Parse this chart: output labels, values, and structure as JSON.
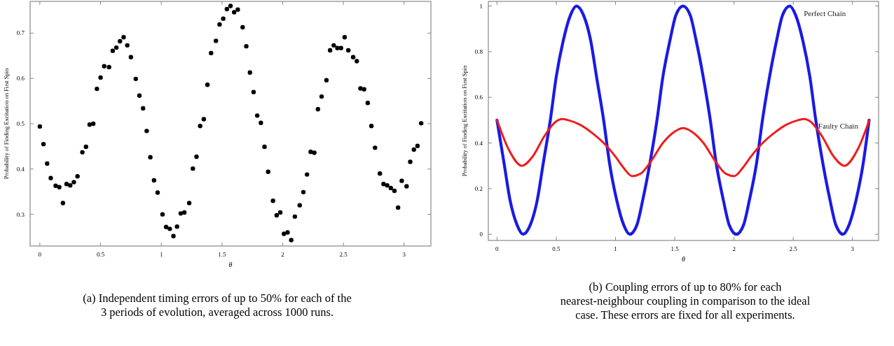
{
  "chart_data": [
    {
      "type": "scatter",
      "xlabel": "θ",
      "ylabel": "Probability of Finding Excitation on First Spin",
      "marker": "circle",
      "grid": false,
      "legend": false,
      "xlim": [
        -0.08,
        3.22
      ],
      "ylim": [
        0.23,
        0.77
      ],
      "xticks": [
        0,
        0.5,
        1,
        1.5,
        2,
        2.5,
        3
      ],
      "yticks": [
        0.3,
        0.4,
        0.5,
        0.6,
        0.7
      ],
      "x": [
        0,
        0.03,
        0.06,
        0.09,
        0.13,
        0.16,
        0.19,
        0.22,
        0.25,
        0.28,
        0.31,
        0.35,
        0.38,
        0.41,
        0.44,
        0.47,
        0.5,
        0.53,
        0.57,
        0.6,
        0.63,
        0.66,
        0.69,
        0.72,
        0.75,
        0.79,
        0.82,
        0.85,
        0.88,
        0.91,
        0.94,
        0.97,
        1.01,
        1.04,
        1.07,
        1.1,
        1.13,
        1.16,
        1.19,
        1.23,
        1.26,
        1.29,
        1.32,
        1.35,
        1.38,
        1.41,
        1.45,
        1.48,
        1.51,
        1.54,
        1.57,
        1.6,
        1.63,
        1.67,
        1.7,
        1.73,
        1.76,
        1.79,
        1.82,
        1.85,
        1.88,
        1.92,
        1.95,
        1.98,
        2.01,
        2.04,
        2.07,
        2.1,
        2.14,
        2.17,
        2.2,
        2.23,
        2.26,
        2.29,
        2.32,
        2.36,
        2.39,
        2.42,
        2.45,
        2.48,
        2.51,
        2.54,
        2.58,
        2.61,
        2.64,
        2.67,
        2.7,
        2.73,
        2.76,
        2.8,
        2.83,
        2.86,
        2.89,
        2.92,
        2.95,
        2.98,
        3.02,
        3.05,
        3.08,
        3.11,
        3.14
      ],
      "color": "#000000",
      "values": [
        0.494,
        0.455,
        0.412,
        0.38,
        0.363,
        0.36,
        0.325,
        0.367,
        0.364,
        0.371,
        0.384,
        0.437,
        0.449,
        0.498,
        0.5,
        0.577,
        0.602,
        0.627,
        0.625,
        0.661,
        0.668,
        0.682,
        0.691,
        0.673,
        0.647,
        0.599,
        0.562,
        0.534,
        0.484,
        0.426,
        0.375,
        0.348,
        0.3,
        0.272,
        0.268,
        0.252,
        0.273,
        0.302,
        0.304,
        0.325,
        0.401,
        0.427,
        0.495,
        0.51,
        0.586,
        0.656,
        0.683,
        0.719,
        0.732,
        0.753,
        0.76,
        0.746,
        0.752,
        0.713,
        0.671,
        0.613,
        0.57,
        0.518,
        0.502,
        0.449,
        0.394,
        0.33,
        0.298,
        0.304,
        0.257,
        0.26,
        0.243,
        0.295,
        0.32,
        0.349,
        0.388,
        0.438,
        0.436,
        0.532,
        0.56,
        0.596,
        0.662,
        0.673,
        0.667,
        0.667,
        0.691,
        0.662,
        0.647,
        0.638,
        0.578,
        0.576,
        0.546,
        0.495,
        0.447,
        0.39,
        0.367,
        0.364,
        0.358,
        0.352,
        0.315,
        0.374,
        0.362,
        0.416,
        0.443,
        0.451,
        0.501
      ],
      "annotations": [
        "(a) Independent timing errors of up to 50% for each of the 3 periods of evolution, averaged across 1000 runs."
      ]
    },
    {
      "type": "line",
      "xlabel": "θ",
      "ylabel": "Probability of Finding Excitation on First Spin",
      "marker": "none",
      "line_style": "solid",
      "grid": false,
      "legend": false,
      "xlim": [
        -0.073,
        3.22
      ],
      "ylim": [
        -0.027,
        1.02
      ],
      "xticks": [
        0,
        0.5,
        1,
        1.5,
        2,
        2.5,
        3
      ],
      "yticks": [
        0,
        0.2,
        0.4,
        0.6,
        0.8,
        1
      ],
      "series": [
        {
          "name": "Perfect Chain",
          "color": "#1a1ae6",
          "x": [
            0,
            0.06,
            0.11,
            0.17,
            0.22,
            0.28,
            0.34,
            0.39,
            0.45,
            0.5,
            0.56,
            0.62,
            0.67,
            0.73,
            0.79,
            0.84,
            0.9,
            0.95,
            1.01,
            1.07,
            1.12,
            1.18,
            1.23,
            1.29,
            1.35,
            1.4,
            1.46,
            1.51,
            1.57,
            1.63,
            1.68,
            1.74,
            1.8,
            1.85,
            1.91,
            1.96,
            2.02,
            2.08,
            2.13,
            2.19,
            2.24,
            2.3,
            2.36,
            2.41,
            2.47,
            2.52,
            2.58,
            2.64,
            2.69,
            2.75,
            2.81,
            2.86,
            2.92,
            2.97,
            3.03,
            3.09,
            3.14
          ],
          "values": [
            0.5,
            0.31,
            0.15,
            0.04,
            0,
            0.04,
            0.15,
            0.31,
            0.5,
            0.69,
            0.85,
            0.96,
            1,
            0.96,
            0.85,
            0.69,
            0.5,
            0.31,
            0.15,
            0.04,
            0,
            0.04,
            0.15,
            0.31,
            0.5,
            0.69,
            0.85,
            0.96,
            1,
            0.96,
            0.85,
            0.69,
            0.5,
            0.31,
            0.15,
            0.04,
            0,
            0.04,
            0.15,
            0.31,
            0.5,
            0.69,
            0.85,
            0.96,
            1,
            0.96,
            0.85,
            0.69,
            0.5,
            0.31,
            0.15,
            0.04,
            0,
            0.04,
            0.15,
            0.31,
            0.5
          ]
        },
        {
          "name": "Faulty Chain",
          "color": "#ee1c1c",
          "x": [
            0,
            0.1,
            0.21,
            0.3,
            0.4,
            0.5,
            0.55,
            0.6,
            0.7,
            0.8,
            0.9,
            1.0,
            1.07,
            1.14,
            1.21,
            1.3,
            1.4,
            1.5,
            1.571,
            1.642,
            1.742,
            1.842,
            1.932,
            2.002,
            2.072,
            2.142,
            2.242,
            2.342,
            2.442,
            2.542,
            2.592,
            2.642,
            2.742,
            2.842,
            2.932,
            3.042,
            3.142
          ],
          "values": [
            0.5,
            0.37,
            0.3,
            0.34,
            0.43,
            0.495,
            0.505,
            0.5,
            0.48,
            0.445,
            0.4,
            0.34,
            0.29,
            0.255,
            0.265,
            0.32,
            0.4,
            0.45,
            0.465,
            0.45,
            0.4,
            0.32,
            0.265,
            0.255,
            0.29,
            0.34,
            0.4,
            0.445,
            0.48,
            0.5,
            0.505,
            0.495,
            0.43,
            0.34,
            0.3,
            0.37,
            0.5
          ]
        }
      ],
      "annotations": [
        "(b) Coupling errors of up to 80% for each nearest-neighbour coupling in comparison to the ideal case. These errors are fixed for all experiments."
      ]
    }
  ]
}
